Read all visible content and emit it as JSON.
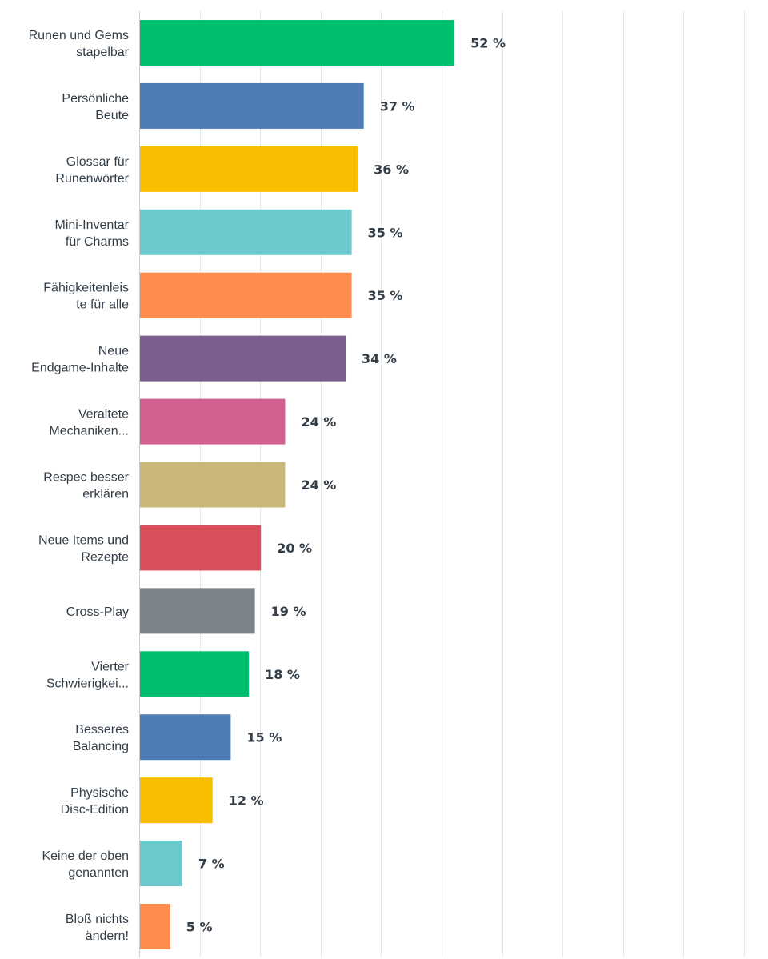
{
  "chart_data": {
    "type": "bar",
    "orientation": "horizontal",
    "categories": [
      [
        "Runen und Gems",
        "stapelbar"
      ],
      [
        "Persönliche",
        "Beute"
      ],
      [
        "Glossar für",
        "Runenwörter"
      ],
      [
        "Mini-Inventar",
        "für Charms"
      ],
      [
        "Fähigkeitenleis",
        "te für alle"
      ],
      [
        "Neue",
        "Endgame-Inhalte"
      ],
      [
        "Veraltete",
        "Mechaniken..."
      ],
      [
        "Respec besser",
        "erklären"
      ],
      [
        "Neue Items und",
        "Rezepte"
      ],
      [
        "Cross-Play"
      ],
      [
        "Vierter",
        "Schwierigkei..."
      ],
      [
        "Besseres",
        "Balancing"
      ],
      [
        "Physische",
        "Disc-Edition"
      ],
      [
        "Keine der oben",
        "genannten"
      ],
      [
        "Bloß nichts",
        "ändern!"
      ]
    ],
    "values": [
      52,
      37,
      36,
      35,
      35,
      34,
      24,
      24,
      20,
      19,
      18,
      15,
      12,
      7,
      5
    ],
    "value_labels": [
      "52 %",
      "37 %",
      "36 %",
      "35 %",
      "35 %",
      "34 %",
      "24 %",
      "24 %",
      "20 %",
      "19 %",
      "18 %",
      "15 %",
      "12 %",
      "7 %",
      "5 %"
    ],
    "colors": [
      "#00bf6f",
      "#507cb6",
      "#f9be00",
      "#6bc8cd",
      "#ff8b4f",
      "#7d5e90",
      "#d25f90",
      "#c9b77a",
      "#d9505c",
      "#7c838a",
      "#00bf6f",
      "#507cb6",
      "#f9be00",
      "#6bc8cd",
      "#ff8b4f"
    ],
    "xlim": [
      0,
      100
    ],
    "grid": true,
    "legend": "none",
    "title": "",
    "xlabel": "",
    "ylabel": ""
  }
}
